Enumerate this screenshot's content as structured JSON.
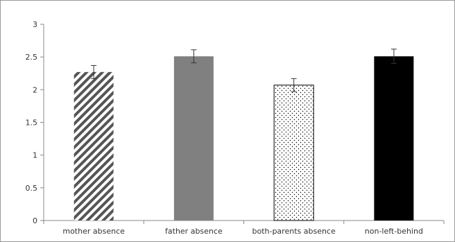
{
  "chart_data": {
    "type": "bar",
    "categories": [
      "mother absence",
      "father absence",
      "both-parents absence",
      "non-left-behind"
    ],
    "values": [
      2.27,
      2.51,
      2.07,
      2.51
    ],
    "errors": [
      0.1,
      0.1,
      0.1,
      0.11
    ],
    "title": "",
    "xlabel": "",
    "ylabel": "",
    "ylim": [
      0,
      3
    ],
    "yticks": [
      "0",
      "0.5",
      "1",
      "1.5",
      "2",
      "2.5",
      "3"
    ],
    "grid": false,
    "legend": "none",
    "bar_styles": [
      "diagonal-stripes",
      "solid-gray",
      "dots",
      "solid-black"
    ],
    "colors": {
      "gray": "#808080",
      "black": "#000000",
      "stripe": "#555555",
      "axis": "#888888",
      "border": "#999999"
    }
  }
}
